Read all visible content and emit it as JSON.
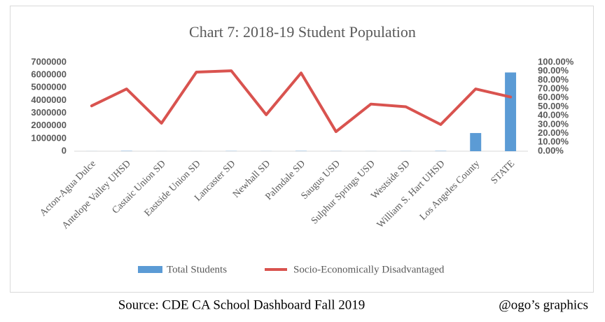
{
  "chart_data": {
    "type": "bar-line",
    "title": "Chart 7: 2018-19 Student Population",
    "categories": [
      "Acton-Agua Dulce",
      "Antelope Valley UHSD",
      "Castaic Union SD",
      "Eastside Union SD",
      "Lancaster SD",
      "Newhall SD",
      "Palmdale SD",
      "Saugus USD",
      "Sulphur Springs USD",
      "Westside SD",
      "William S. Hart UHSD",
      "Los Angeles County",
      "STATE"
    ],
    "series": [
      {
        "name": "Total Students",
        "type": "bar",
        "color": "#5b9bd5",
        "values": [
          4000,
          23000,
          3000,
          3300,
          14000,
          6800,
          20000,
          9700,
          5500,
          8500,
          22000,
          1430000,
          6200000
        ]
      },
      {
        "name": "Socio-Economically Disadvantaged",
        "type": "line",
        "axis": "y2",
        "color": "#d9534f",
        "values": [
          51,
          70,
          31.5,
          89,
          90.5,
          41,
          88,
          22,
          53,
          50,
          30,
          70,
          61
        ]
      }
    ],
    "ylim": [
      0,
      7000000
    ],
    "yticks": [
      0,
      1000000,
      2000000,
      3000000,
      4000000,
      5000000,
      6000000,
      7000000
    ],
    "y2lim": [
      0,
      100
    ],
    "y2ticks": [
      {
        "value": 0,
        "label": "0.00%"
      },
      {
        "value": 10,
        "label": "10.00%"
      },
      {
        "value": 20,
        "label": "20.00%"
      },
      {
        "value": 30,
        "label": "30.00%"
      },
      {
        "value": 40,
        "label": "40.00%"
      },
      {
        "value": 50,
        "label": "50.00%"
      },
      {
        "value": 60,
        "label": "60.00%"
      },
      {
        "value": 70,
        "label": "70.00%"
      },
      {
        "value": 80,
        "label": "80.00%"
      },
      {
        "value": 90,
        "label": "90.00%"
      },
      {
        "value": 100,
        "label": "100.00%"
      }
    ],
    "grid": false,
    "legend": "bottom"
  },
  "footer": {
    "source": "Source: CDE CA School Dashboard Fall 2019",
    "credit": "@ogo’s graphics"
  }
}
